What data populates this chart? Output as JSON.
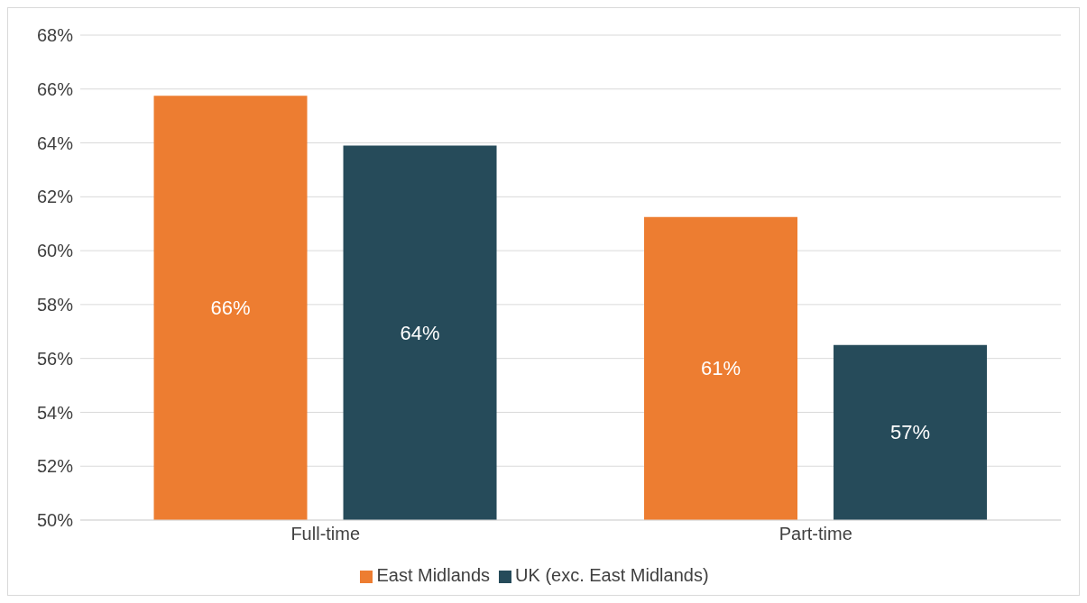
{
  "chart_data": {
    "type": "bar",
    "categories": [
      "Full-time",
      "Part-time"
    ],
    "series": [
      {
        "name": "East Midlands",
        "color": "#ed7d31",
        "values": [
          65.75,
          61.25
        ],
        "value_labels": [
          "66%",
          "61%"
        ]
      },
      {
        "name": "UK (exc. East Midlands)",
        "color": "#264b5a",
        "values": [
          63.9,
          56.5
        ],
        "value_labels": [
          "64%",
          "57%"
        ]
      }
    ],
    "ylim": [
      50,
      68
    ],
    "yticks": [
      {
        "value": 50,
        "label": "50%"
      },
      {
        "value": 52,
        "label": "52%"
      },
      {
        "value": 54,
        "label": "54%"
      },
      {
        "value": 56,
        "label": "56%"
      },
      {
        "value": 58,
        "label": "58%"
      },
      {
        "value": 60,
        "label": "60%"
      },
      {
        "value": 62,
        "label": "62%"
      },
      {
        "value": 64,
        "label": "64%"
      },
      {
        "value": 66,
        "label": "66%"
      },
      {
        "value": 68,
        "label": "68%"
      }
    ],
    "grid": "y",
    "legend": "bottom"
  }
}
